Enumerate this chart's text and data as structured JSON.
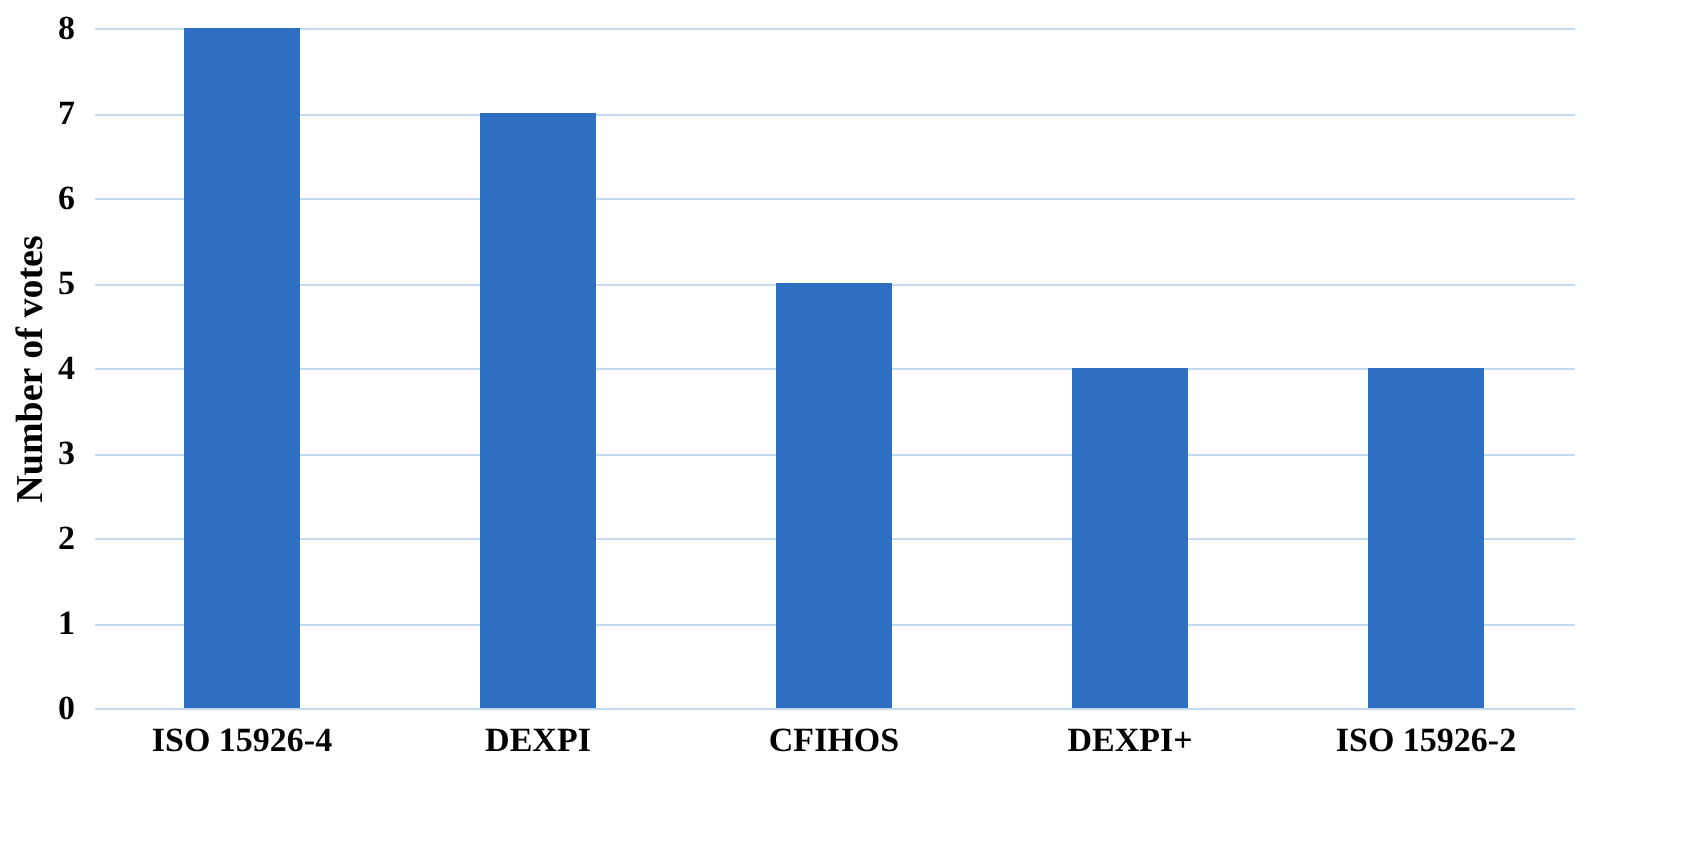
{
  "chart_data": {
    "type": "bar",
    "ylabel": "Number of votes",
    "categories": [
      "ISO 15926-4",
      "DEXPI",
      "CFIHOS",
      "DEXPI+",
      "ISO 15926-2"
    ],
    "values": [
      8,
      7,
      5,
      4,
      4
    ],
    "color": "#2e6fc1",
    "ylim": [
      0,
      8
    ],
    "yticks": [
      0,
      1,
      2,
      3,
      4,
      5,
      6,
      7,
      8
    ],
    "grid": "y"
  }
}
